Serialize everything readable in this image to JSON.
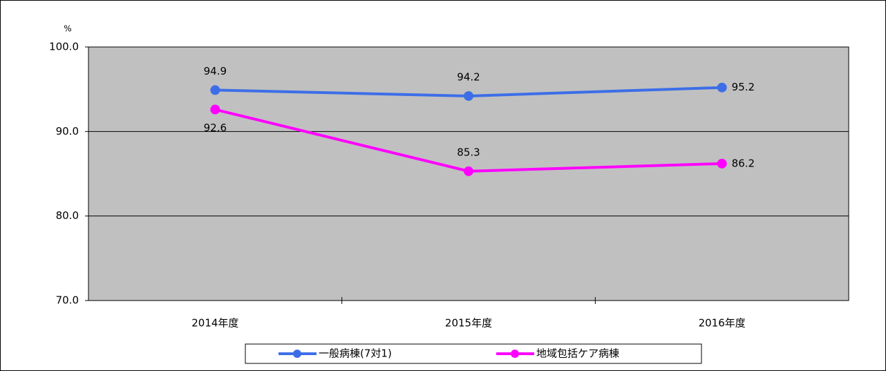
{
  "chart_data": {
    "type": "line",
    "ylabel": "%",
    "categories": [
      "2014年度",
      "2015年度",
      "2016年度"
    ],
    "series": [
      {
        "name": "一般病棟(7対1)",
        "color": "#3d6ee8",
        "values": [
          94.9,
          94.2,
          95.2
        ]
      },
      {
        "name": "地域包括ケア病棟",
        "color": "#ff00ff",
        "values": [
          92.6,
          85.3,
          86.2
        ]
      }
    ],
    "ylim": [
      70,
      100
    ],
    "yticks": [
      {
        "value": 70,
        "label": "70.0"
      },
      {
        "value": 80,
        "label": "80.0"
      },
      {
        "value": 90,
        "label": "90.0"
      },
      {
        "value": 100,
        "label": "100.0"
      }
    ],
    "grid": true,
    "plot_background": "#c0c0c0",
    "legend": "bottom"
  }
}
